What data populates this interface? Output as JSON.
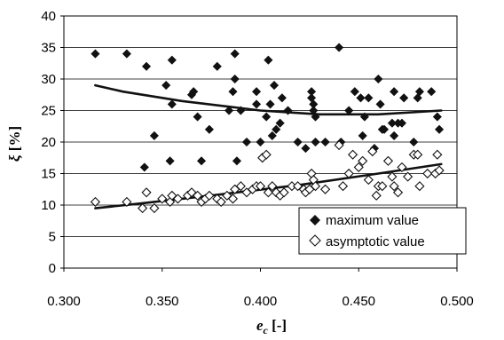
{
  "chart_data": {
    "type": "scatter",
    "xlabel_main": "e",
    "xlabel_sub": "c",
    "xlabel_unit": " [-]",
    "ylabel_main": "ξ",
    "ylabel_unit": " [%]",
    "xlim": [
      0.3,
      0.5
    ],
    "ylim": [
      0,
      40
    ],
    "x_ticks": [
      "0.300",
      "0.350",
      "0.400",
      "0.450",
      "0.500"
    ],
    "y_ticks": [
      "0",
      "5",
      "10",
      "15",
      "20",
      "25",
      "30",
      "35",
      "40"
    ],
    "grid": "horizontal",
    "legend_position": "bottom-right",
    "series": [
      {
        "name": "maximum value",
        "marker": "filled-diamond",
        "points": [
          [
            0.316,
            34
          ],
          [
            0.332,
            34
          ],
          [
            0.341,
            16
          ],
          [
            0.342,
            32
          ],
          [
            0.346,
            21
          ],
          [
            0.352,
            29
          ],
          [
            0.354,
            17
          ],
          [
            0.355,
            26
          ],
          [
            0.355,
            33
          ],
          [
            0.365,
            27.5
          ],
          [
            0.366,
            28
          ],
          [
            0.368,
            24
          ],
          [
            0.37,
            17
          ],
          [
            0.374,
            22
          ],
          [
            0.378,
            32
          ],
          [
            0.384,
            25
          ],
          [
            0.386,
            28
          ],
          [
            0.387,
            30
          ],
          [
            0.387,
            34
          ],
          [
            0.388,
            17
          ],
          [
            0.39,
            25
          ],
          [
            0.393,
            20
          ],
          [
            0.398,
            28
          ],
          [
            0.398,
            26
          ],
          [
            0.4,
            20
          ],
          [
            0.403,
            24
          ],
          [
            0.404,
            33
          ],
          [
            0.405,
            26
          ],
          [
            0.406,
            21
          ],
          [
            0.407,
            29
          ],
          [
            0.408,
            22
          ],
          [
            0.41,
            23
          ],
          [
            0.411,
            27
          ],
          [
            0.414,
            25
          ],
          [
            0.419,
            20
          ],
          [
            0.423,
            19
          ],
          [
            0.426,
            28
          ],
          [
            0.426,
            27
          ],
          [
            0.427,
            26
          ],
          [
            0.427,
            25
          ],
          [
            0.428,
            24
          ],
          [
            0.428,
            20
          ],
          [
            0.433,
            20
          ],
          [
            0.44,
            35
          ],
          [
            0.441,
            20
          ],
          [
            0.445,
            25
          ],
          [
            0.448,
            28
          ],
          [
            0.451,
            27
          ],
          [
            0.452,
            21
          ],
          [
            0.453,
            24
          ],
          [
            0.455,
            27
          ],
          [
            0.458,
            19
          ],
          [
            0.46,
            30
          ],
          [
            0.461,
            26
          ],
          [
            0.462,
            22
          ],
          [
            0.463,
            22
          ],
          [
            0.467,
            23
          ],
          [
            0.468,
            28
          ],
          [
            0.468,
            21
          ],
          [
            0.47,
            23
          ],
          [
            0.472,
            23
          ],
          [
            0.473,
            27
          ],
          [
            0.478,
            20
          ],
          [
            0.48,
            27
          ],
          [
            0.481,
            28
          ],
          [
            0.487,
            28
          ],
          [
            0.49,
            24
          ],
          [
            0.491,
            22
          ]
        ]
      },
      {
        "name": "asymptotic value",
        "marker": "open-diamond",
        "points": [
          [
            0.316,
            10.5
          ],
          [
            0.332,
            10.5
          ],
          [
            0.34,
            9.5
          ],
          [
            0.342,
            12
          ],
          [
            0.346,
            9.5
          ],
          [
            0.35,
            11
          ],
          [
            0.354,
            10.5
          ],
          [
            0.355,
            11.5
          ],
          [
            0.358,
            11
          ],
          [
            0.363,
            11.5
          ],
          [
            0.365,
            12
          ],
          [
            0.368,
            11.5
          ],
          [
            0.37,
            10.5
          ],
          [
            0.372,
            11
          ],
          [
            0.374,
            11.5
          ],
          [
            0.378,
            11
          ],
          [
            0.38,
            10.5
          ],
          [
            0.383,
            11.5
          ],
          [
            0.386,
            11
          ],
          [
            0.387,
            12.5
          ],
          [
            0.39,
            13
          ],
          [
            0.393,
            12
          ],
          [
            0.396,
            12.5
          ],
          [
            0.398,
            13
          ],
          [
            0.4,
            13
          ],
          [
            0.401,
            17.5
          ],
          [
            0.403,
            18
          ],
          [
            0.404,
            12
          ],
          [
            0.406,
            13
          ],
          [
            0.408,
            12
          ],
          [
            0.41,
            11.5
          ],
          [
            0.412,
            12
          ],
          [
            0.416,
            13
          ],
          [
            0.419,
            13
          ],
          [
            0.422,
            12.5
          ],
          [
            0.423,
            12
          ],
          [
            0.425,
            12.5
          ],
          [
            0.426,
            15
          ],
          [
            0.427,
            14
          ],
          [
            0.428,
            13
          ],
          [
            0.433,
            12.5
          ],
          [
            0.44,
            19.5
          ],
          [
            0.442,
            13
          ],
          [
            0.445,
            15
          ],
          [
            0.447,
            18
          ],
          [
            0.45,
            16
          ],
          [
            0.452,
            17
          ],
          [
            0.455,
            14
          ],
          [
            0.457,
            18.5
          ],
          [
            0.459,
            11.5
          ],
          [
            0.46,
            13
          ],
          [
            0.462,
            13
          ],
          [
            0.465,
            17
          ],
          [
            0.467,
            14.5
          ],
          [
            0.468,
            13
          ],
          [
            0.47,
            12
          ],
          [
            0.472,
            16
          ],
          [
            0.475,
            14.5
          ],
          [
            0.478,
            18
          ],
          [
            0.48,
            18
          ],
          [
            0.481,
            13
          ],
          [
            0.485,
            15
          ],
          [
            0.489,
            15
          ],
          [
            0.49,
            18
          ],
          [
            0.491,
            15.5
          ]
        ]
      }
    ],
    "trendlines": [
      {
        "points": [
          [
            0.316,
            29
          ],
          [
            0.33,
            28
          ],
          [
            0.36,
            26.5
          ],
          [
            0.4,
            25
          ],
          [
            0.43,
            24.4
          ],
          [
            0.46,
            24.4
          ],
          [
            0.492,
            25
          ]
        ]
      },
      {
        "points": [
          [
            0.316,
            9.5
          ],
          [
            0.34,
            10.3
          ],
          [
            0.38,
            11.7
          ],
          [
            0.42,
            13.2
          ],
          [
            0.46,
            15
          ],
          [
            0.492,
            16.5
          ]
        ]
      }
    ]
  }
}
